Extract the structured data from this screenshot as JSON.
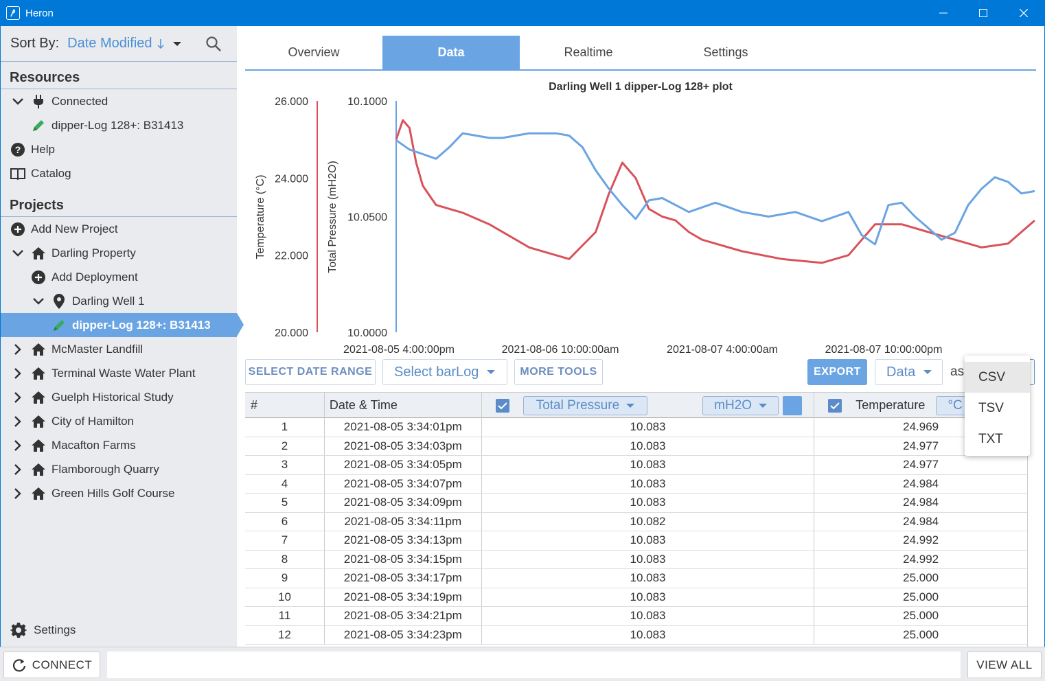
{
  "window": {
    "title": "Heron",
    "icon": "heron-app-icon",
    "minimize": "minimize-icon",
    "maximize": "maximize-icon",
    "close": "close-icon"
  },
  "sidebar": {
    "sort_label": "Sort By:",
    "sort_value": "Date Modified",
    "resources_heading": "Resources",
    "resources": [
      {
        "label": "Connected",
        "icon": "plug-icon"
      },
      {
        "label": "dipper-Log 128+: B31413",
        "icon": "pencil-icon"
      },
      {
        "label": "Help",
        "icon": "help-icon"
      },
      {
        "label": "Catalog",
        "icon": "book-icon"
      }
    ],
    "projects_heading": "Projects",
    "projects": [
      {
        "label": "Add New Project",
        "icon": "plus-circle-icon"
      },
      {
        "label": "Darling Property",
        "icon": "home-icon"
      },
      {
        "label": "Add Deployment",
        "icon": "plus-circle-icon"
      },
      {
        "label": "Darling Well 1",
        "icon": "location-pin-icon"
      },
      {
        "label": "dipper-Log 128+: B31413",
        "icon": "pencil-icon"
      },
      {
        "label": "McMaster Landfill",
        "icon": "home-icon"
      },
      {
        "label": "Terminal Waste Water Plant",
        "icon": "home-icon"
      },
      {
        "label": "Guelph Historical Study",
        "icon": "home-icon"
      },
      {
        "label": "City of Hamilton",
        "icon": "home-icon"
      },
      {
        "label": "Macafton Farms",
        "icon": "home-icon"
      },
      {
        "label": "Flamborough Quarry",
        "icon": "home-icon"
      },
      {
        "label": "Green Hills Golf Course",
        "icon": "home-icon"
      }
    ],
    "settings_label": "Settings"
  },
  "tabs": [
    "Overview",
    "Data",
    "Realtime",
    "Settings"
  ],
  "active_tab": "Data",
  "chart_data": {
    "type": "line",
    "title": "Darling Well 1 dipper-Log 128+ plot",
    "x_tick_labels": [
      "2021-08-05 4:00:00pm",
      "2021-08-06 10:00:00am",
      "2021-08-07 4:00:00am",
      "2021-08-07 10:00:00pm"
    ],
    "y_left_label": "Temperature (°C)",
    "y_left_ticks": [
      "26.000",
      "24.000",
      "22.000",
      "20.000"
    ],
    "y_left_range": [
      20,
      26
    ],
    "y_right_label": "Total Pressure (mH2O)",
    "y_right_ticks": [
      "10.1000",
      "10.0500",
      "10.0000"
    ],
    "y_right_range": [
      10.0,
      10.1
    ],
    "x_range_hours": [
      0,
      96
    ],
    "series": [
      {
        "color": "#d9525a",
        "axis": "temperature",
        "x": [
          0,
          1,
          2,
          3,
          4,
          6,
          8,
          10,
          14,
          20,
          26,
          30,
          32,
          34,
          36,
          38,
          40,
          42,
          44,
          46,
          48,
          52,
          58,
          64,
          68,
          72,
          76,
          80,
          84,
          88,
          92,
          96
        ],
        "y": [
          25.0,
          25.5,
          25.3,
          24.4,
          23.8,
          23.3,
          23.2,
          23.1,
          22.8,
          22.2,
          21.9,
          22.6,
          23.6,
          24.4,
          24.0,
          23.2,
          23.0,
          22.9,
          22.6,
          22.4,
          22.3,
          22.1,
          21.9,
          21.8,
          22.0,
          22.8,
          22.8,
          22.6,
          22.4,
          22.2,
          22.3,
          22.9
        ]
      },
      {
        "color": "#6aa4e3",
        "axis": "pressure",
        "x": [
          0,
          2,
          4,
          6,
          8,
          10,
          12,
          14,
          16,
          18,
          20,
          22,
          24,
          26,
          28,
          30,
          32,
          34,
          36,
          38,
          40,
          44,
          48,
          52,
          56,
          60,
          64,
          68,
          70,
          72,
          74,
          76,
          78,
          80,
          82,
          84,
          86,
          88,
          90,
          92,
          94,
          96
        ],
        "y": [
          10.083,
          10.079,
          10.077,
          10.075,
          10.08,
          10.086,
          10.085,
          10.084,
          10.084,
          10.085,
          10.086,
          10.086,
          10.086,
          10.085,
          10.08,
          10.07,
          10.062,
          10.055,
          10.049,
          10.057,
          10.058,
          10.052,
          10.056,
          10.052,
          10.05,
          10.052,
          10.048,
          10.052,
          10.042,
          10.038,
          10.055,
          10.056,
          10.05,
          10.045,
          10.04,
          10.043,
          10.055,
          10.062,
          10.067,
          10.065,
          10.06,
          10.061
        ]
      }
    ]
  },
  "toolbar": {
    "select_date_range": "SELECT DATE RANGE",
    "select_barlog": "Select barLog",
    "more_tools": "MORE TOOLS",
    "export": "EXPORT",
    "export_type": "Data",
    "as_label": "as"
  },
  "table": {
    "headers": {
      "index": "#",
      "datetime": "Date & Time",
      "pressure_select": "Total Pressure",
      "pressure_unit": "mH2O",
      "temperature": "Temperature",
      "temp_unit": "°C"
    },
    "rows": [
      [
        "1",
        "2021-08-05 3:34:01pm",
        "10.083",
        "24.969"
      ],
      [
        "2",
        "2021-08-05 3:34:03pm",
        "10.083",
        "24.977"
      ],
      [
        "3",
        "2021-08-05 3:34:05pm",
        "10.083",
        "24.977"
      ],
      [
        "4",
        "2021-08-05 3:34:07pm",
        "10.083",
        "24.984"
      ],
      [
        "5",
        "2021-08-05 3:34:09pm",
        "10.083",
        "24.984"
      ],
      [
        "6",
        "2021-08-05 3:34:11pm",
        "10.082",
        "24.984"
      ],
      [
        "7",
        "2021-08-05 3:34:13pm",
        "10.083",
        "24.992"
      ],
      [
        "8",
        "2021-08-05 3:34:15pm",
        "10.083",
        "24.992"
      ],
      [
        "9",
        "2021-08-05 3:34:17pm",
        "10.083",
        "25.000"
      ],
      [
        "10",
        "2021-08-05 3:34:19pm",
        "10.083",
        "25.000"
      ],
      [
        "11",
        "2021-08-05 3:34:21pm",
        "10.083",
        "25.000"
      ],
      [
        "12",
        "2021-08-05 3:34:23pm",
        "10.083",
        "25.000"
      ]
    ]
  },
  "export_menu": [
    "CSV",
    "TSV",
    "TXT"
  ],
  "footer": {
    "connect": "CONNECT",
    "view_all": "VIEW ALL",
    "status_text": ""
  }
}
